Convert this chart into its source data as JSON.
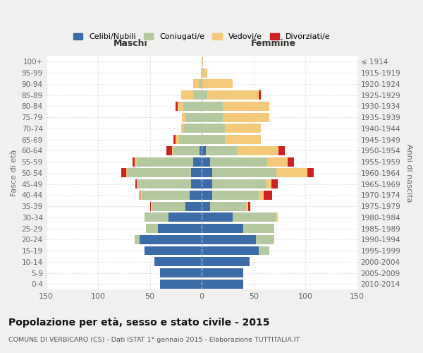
{
  "age_groups": [
    "0-4",
    "5-9",
    "10-14",
    "15-19",
    "20-24",
    "25-29",
    "30-34",
    "35-39",
    "40-44",
    "45-49",
    "50-54",
    "55-59",
    "60-64",
    "65-69",
    "70-74",
    "75-79",
    "80-84",
    "85-89",
    "90-94",
    "95-99",
    "100+"
  ],
  "birth_years": [
    "2010-2014",
    "2005-2009",
    "2000-2004",
    "1995-1999",
    "1990-1994",
    "1985-1989",
    "1980-1984",
    "1975-1979",
    "1970-1974",
    "1965-1969",
    "1960-1964",
    "1955-1959",
    "1950-1954",
    "1945-1949",
    "1940-1944",
    "1935-1939",
    "1930-1934",
    "1925-1929",
    "1920-1924",
    "1915-1919",
    "≤ 1914"
  ],
  "male": {
    "celibi": [
      40,
      40,
      46,
      55,
      60,
      42,
      32,
      16,
      12,
      10,
      10,
      8,
      2,
      0,
      0,
      0,
      0,
      0,
      0,
      0,
      0
    ],
    "coniugati": [
      0,
      0,
      0,
      0,
      5,
      12,
      23,
      32,
      46,
      52,
      62,
      55,
      25,
      22,
      18,
      16,
      18,
      8,
      2,
      0,
      0
    ],
    "vedovi": [
      0,
      0,
      0,
      0,
      0,
      0,
      0,
      1,
      1,
      1,
      1,
      2,
      2,
      3,
      2,
      3,
      5,
      12,
      6,
      1,
      0
    ],
    "divorziati": [
      0,
      0,
      0,
      0,
      0,
      0,
      0,
      1,
      1,
      1,
      5,
      2,
      5,
      2,
      0,
      0,
      2,
      0,
      0,
      0,
      0
    ]
  },
  "female": {
    "nubili": [
      40,
      40,
      46,
      55,
      52,
      40,
      30,
      8,
      10,
      10,
      10,
      8,
      4,
      0,
      0,
      0,
      0,
      0,
      0,
      0,
      0
    ],
    "coniugate": [
      0,
      0,
      0,
      10,
      18,
      30,
      42,
      35,
      45,
      52,
      62,
      55,
      30,
      22,
      22,
      20,
      20,
      5,
      0,
      0,
      0
    ],
    "vedove": [
      0,
      0,
      0,
      0,
      0,
      0,
      1,
      2,
      5,
      5,
      30,
      20,
      40,
      35,
      35,
      45,
      45,
      50,
      30,
      5,
      1
    ],
    "divorziate": [
      0,
      0,
      0,
      0,
      0,
      0,
      0,
      2,
      8,
      6,
      6,
      6,
      6,
      0,
      0,
      0,
      0,
      2,
      0,
      0,
      0
    ]
  },
  "colors": {
    "celibi": "#3c6ca8",
    "coniugati": "#b5c9a0",
    "vedovi": "#f5c97a",
    "divorziati": "#cc2222"
  },
  "title": "Popolazione per età, sesso e stato civile - 2015",
  "subtitle": "COMUNE DI VERBICARO (CS) - Dati ISTAT 1° gennaio 2015 - Elaborazione TUTTITALIA.IT",
  "xlabel_left": "Maschi",
  "xlabel_right": "Femmine",
  "ylabel_left": "Fasce di età",
  "ylabel_right": "Anni di nascita",
  "xlim": 150,
  "legend_labels": [
    "Celibi/Nubili",
    "Coniugati/e",
    "Vedovi/e",
    "Divorziati/e"
  ],
  "bg_color": "#f0f0ee",
  "plot_bg": "#ffffff",
  "grid_color": "#cccccc"
}
